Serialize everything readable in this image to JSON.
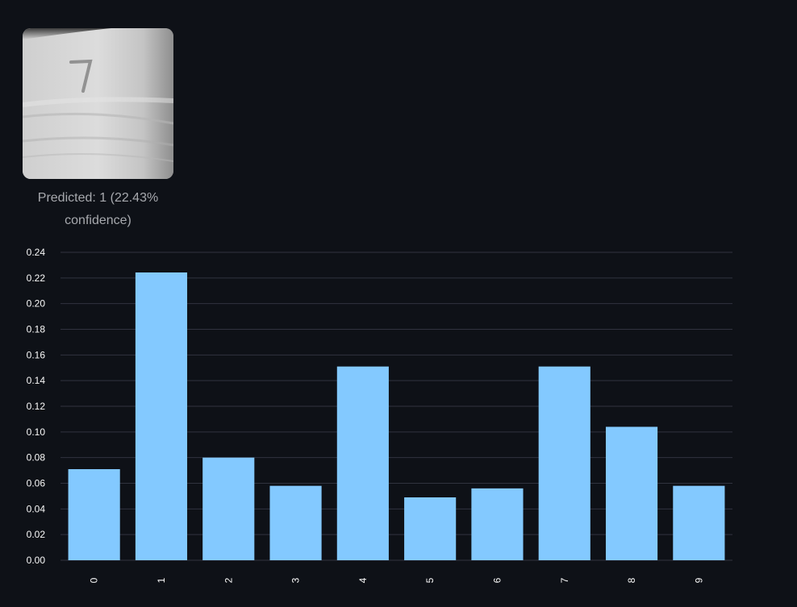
{
  "prediction": {
    "digit_image_icon": "digit-seven-photo",
    "caption": "Predicted: 1 (22.43% confidence)"
  },
  "colors": {
    "background": "#0e1117",
    "bar": "#83c9ff",
    "grid": "#31333f",
    "tick_text": "#fafafa",
    "caption_text": "#a7a9ae"
  },
  "chart_data": {
    "type": "bar",
    "categories": [
      "0",
      "1",
      "2",
      "3",
      "4",
      "5",
      "6",
      "7",
      "8",
      "9"
    ],
    "values": [
      0.071,
      0.2243,
      0.08,
      0.058,
      0.151,
      0.049,
      0.056,
      0.151,
      0.104,
      0.058
    ],
    "ylim": [
      0,
      0.24
    ],
    "yticks": [
      "0.00",
      "0.02",
      "0.04",
      "0.06",
      "0.08",
      "0.10",
      "0.12",
      "0.14",
      "0.16",
      "0.18",
      "0.20",
      "0.22",
      "0.24"
    ],
    "grid": true,
    "xlabel": "",
    "ylabel": "",
    "title": ""
  }
}
